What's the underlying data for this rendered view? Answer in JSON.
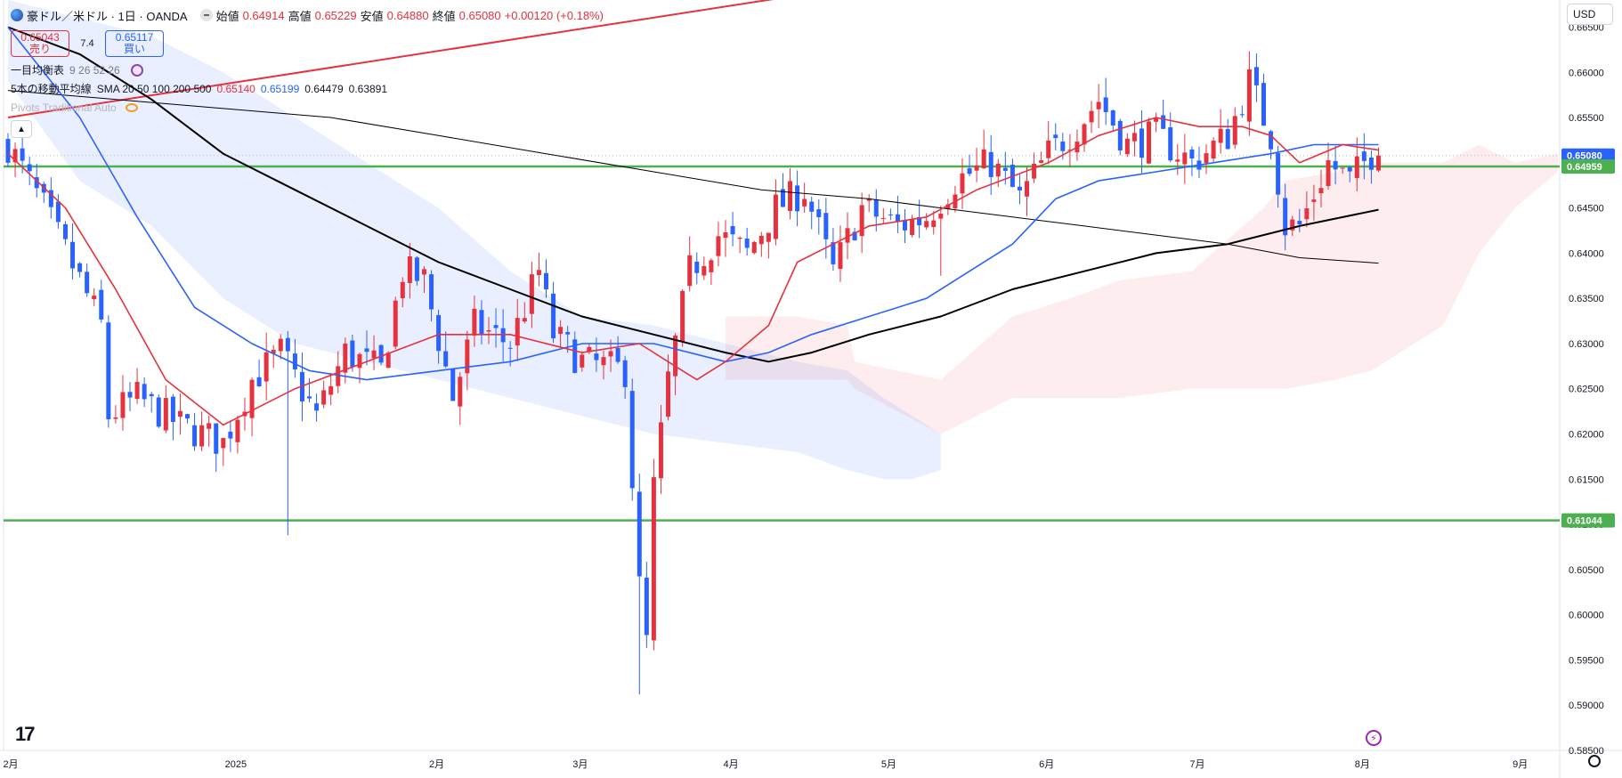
{
  "header": {
    "symbol_title": "豪ドル／米ドル · 1日 · OANDA",
    "ohlc": [
      {
        "label": "始値",
        "value": "0.64914"
      },
      {
        "label": "高値",
        "value": "0.65229"
      },
      {
        "label": "安値",
        "value": "0.64880"
      },
      {
        "label": "終値",
        "value": "0.65080"
      }
    ],
    "change": "+0.00120 (+0.18%)",
    "sell_price": "0.65043",
    "sell_label": "売り",
    "spread": "7.4",
    "buy_price": "0.65117",
    "buy_label": "買い",
    "currency": "USD"
  },
  "indicators": [
    {
      "name": "一目均衡表",
      "params": "9 26 52 26",
      "values": []
    },
    {
      "name": "5本の移動平均線",
      "params": "SMA 20 50 100 200 500",
      "values": [
        "0.65140",
        "0.65199",
        "0.64479",
        "0.63891"
      ]
    },
    {
      "name": "Pivots Traditional Auto",
      "params": "",
      "values": []
    }
  ],
  "colors": {
    "up": "#e5323e",
    "down": "#2962ff",
    "sma20": "#e5323e",
    "sma50": "#2962ff",
    "sma100": "#000000",
    "sma200": "#000000",
    "hline": "#4caf50"
  },
  "chart_data": {
    "type": "candlestick",
    "title": "豪ドル／米ドル · 1日 · OANDA",
    "ylim": [
      0.585,
      0.668
    ],
    "y_ticks": [
      "0.66500",
      "0.66000",
      "0.65500",
      "0.65000",
      "0.64500",
      "0.64000",
      "0.63500",
      "0.63000",
      "0.62500",
      "0.62000",
      "0.61500",
      "0.61000",
      "0.60500",
      "0.60000",
      "0.59500",
      "0.59000",
      "0.58500"
    ],
    "x_ticks": [
      "2月",
      "2025",
      "2月",
      "3月",
      "4月",
      "5月",
      "6月",
      "7月",
      "8月",
      "9月"
    ],
    "x_tick_index": [
      -91,
      -59,
      -31,
      -11,
      10,
      32,
      54,
      75,
      98,
      120
    ],
    "horizontal_lines": [
      {
        "label": "0.64959",
        "value": 0.64959
      },
      {
        "label": "0.61044",
        "value": 0.61044
      }
    ],
    "last_price": {
      "label": "0.65080",
      "value": 0.6508
    },
    "waypoints": [
      [
        0,
        0.652
      ],
      [
        5,
        0.645
      ],
      [
        10,
        0.637
      ],
      [
        13,
        0.632
      ],
      [
        14,
        0.622
      ],
      [
        18,
        0.624
      ],
      [
        24,
        0.621
      ],
      [
        30,
        0.619
      ],
      [
        34,
        0.626
      ],
      [
        38,
        0.629
      ],
      [
        43,
        0.622
      ],
      [
        47,
        0.629
      ],
      [
        52,
        0.627
      ],
      [
        55,
        0.638
      ],
      [
        58,
        0.637
      ],
      [
        62,
        0.624
      ],
      [
        65,
        0.632
      ],
      [
        70,
        0.63
      ],
      [
        74,
        0.638
      ],
      [
        76,
        0.631
      ],
      [
        80,
        0.628
      ],
      [
        86,
        0.627
      ],
      [
        88,
        0.603
      ],
      [
        89,
        0.597
      ],
      [
        90,
        0.614
      ],
      [
        92,
        0.626
      ],
      [
        95,
        0.638
      ],
      [
        99,
        0.642
      ],
      [
        103,
        0.64
      ],
      [
        107,
        0.645
      ],
      [
        111,
        0.647
      ],
      [
        115,
        0.638
      ],
      [
        119,
        0.645
      ],
      [
        124,
        0.643
      ],
      [
        128,
        0.644
      ],
      [
        132,
        0.648
      ],
      [
        137,
        0.65
      ],
      [
        141,
        0.646
      ],
      [
        145,
        0.651
      ],
      [
        149,
        0.654
      ],
      [
        152,
        0.657
      ],
      [
        156,
        0.652
      ],
      [
        160,
        0.653
      ],
      [
        165,
        0.65
      ],
      [
        170,
        0.653
      ],
      [
        173,
        0.659
      ],
      [
        176,
        0.653
      ],
      [
        178,
        0.643
      ],
      [
        180,
        0.643
      ],
      [
        184,
        0.65
      ],
      [
        187,
        0.648
      ],
      [
        190,
        0.651
      ],
      [
        191,
        0.6508
      ]
    ],
    "sma20_path": [
      [
        0,
        0.651
      ],
      [
        8,
        0.645
      ],
      [
        15,
        0.636
      ],
      [
        22,
        0.626
      ],
      [
        30,
        0.621
      ],
      [
        40,
        0.625
      ],
      [
        50,
        0.628
      ],
      [
        60,
        0.631
      ],
      [
        70,
        0.631
      ],
      [
        80,
        0.629
      ],
      [
        88,
        0.63
      ],
      [
        92,
        0.628
      ],
      [
        96,
        0.626
      ],
      [
        100,
        0.628
      ],
      [
        106,
        0.632
      ],
      [
        110,
        0.639
      ],
      [
        115,
        0.641
      ],
      [
        120,
        0.643
      ],
      [
        128,
        0.644
      ],
      [
        135,
        0.647
      ],
      [
        145,
        0.65
      ],
      [
        152,
        0.653
      ],
      [
        160,
        0.655
      ],
      [
        166,
        0.654
      ],
      [
        172,
        0.654
      ],
      [
        176,
        0.653
      ],
      [
        180,
        0.65
      ],
      [
        186,
        0.652
      ],
      [
        191,
        0.6514
      ]
    ],
    "sma50_path": [
      [
        0,
        0.665
      ],
      [
        10,
        0.655
      ],
      [
        18,
        0.644
      ],
      [
        26,
        0.634
      ],
      [
        34,
        0.63
      ],
      [
        42,
        0.627
      ],
      [
        50,
        0.626
      ],
      [
        60,
        0.627
      ],
      [
        70,
        0.628
      ],
      [
        80,
        0.63
      ],
      [
        90,
        0.63
      ],
      [
        100,
        0.628
      ],
      [
        106,
        0.629
      ],
      [
        112,
        0.631
      ],
      [
        120,
        0.633
      ],
      [
        128,
        0.635
      ],
      [
        134,
        0.638
      ],
      [
        140,
        0.641
      ],
      [
        146,
        0.646
      ],
      [
        152,
        0.648
      ],
      [
        160,
        0.649
      ],
      [
        168,
        0.65
      ],
      [
        176,
        0.651
      ],
      [
        182,
        0.652
      ],
      [
        191,
        0.652
      ]
    ],
    "sma100_path": [
      [
        0,
        0.665
      ],
      [
        10,
        0.662
      ],
      [
        20,
        0.657
      ],
      [
        30,
        0.651
      ],
      [
        40,
        0.647
      ],
      [
        50,
        0.643
      ],
      [
        60,
        0.639
      ],
      [
        70,
        0.636
      ],
      [
        80,
        0.633
      ],
      [
        90,
        0.631
      ],
      [
        100,
        0.629
      ],
      [
        106,
        0.628
      ],
      [
        112,
        0.629
      ],
      [
        120,
        0.631
      ],
      [
        130,
        0.633
      ],
      [
        140,
        0.636
      ],
      [
        150,
        0.638
      ],
      [
        160,
        0.64
      ],
      [
        170,
        0.641
      ],
      [
        180,
        0.643
      ],
      [
        191,
        0.6448
      ]
    ],
    "sma200_path": [
      [
        0,
        0.658
      ],
      [
        15,
        0.657
      ],
      [
        30,
        0.656
      ],
      [
        45,
        0.655
      ],
      [
        60,
        0.653
      ],
      [
        75,
        0.651
      ],
      [
        90,
        0.649
      ],
      [
        105,
        0.647
      ],
      [
        120,
        0.646
      ],
      [
        130,
        0.645
      ],
      [
        140,
        0.644
      ],
      [
        150,
        0.643
      ],
      [
        160,
        0.642
      ],
      [
        170,
        0.641
      ],
      [
        180,
        0.6395
      ],
      [
        191,
        0.6389
      ]
    ],
    "trend_line": [
      [
        0,
        0.655
      ],
      [
        114,
        0.669
      ]
    ],
    "cloud_blue": [
      [
        0,
        0.668,
        0.659
      ],
      [
        10,
        0.666,
        0.648
      ],
      [
        20,
        0.664,
        0.643
      ],
      [
        30,
        0.66,
        0.635
      ],
      [
        40,
        0.655,
        0.63
      ],
      [
        50,
        0.65,
        0.628
      ],
      [
        60,
        0.645,
        0.626
      ],
      [
        70,
        0.638,
        0.624
      ],
      [
        80,
        0.633,
        0.622
      ],
      [
        90,
        0.632,
        0.62
      ],
      [
        100,
        0.63,
        0.619
      ],
      [
        110,
        0.628,
        0.618
      ],
      [
        117,
        0.627,
        0.616
      ],
      [
        122,
        0.624,
        0.615
      ],
      [
        126,
        0.622,
        0.615
      ],
      [
        130,
        0.62,
        0.616
      ]
    ],
    "cloud_pink": [
      [
        100,
        0.633,
        0.626
      ],
      [
        110,
        0.633,
        0.626
      ],
      [
        117,
        0.632,
        0.626
      ],
      [
        118,
        0.628,
        0.625
      ],
      [
        130,
        0.626,
        0.62
      ],
      [
        140,
        0.633,
        0.624
      ],
      [
        148,
        0.635,
        0.624
      ],
      [
        155,
        0.637,
        0.624
      ],
      [
        165,
        0.638,
        0.625
      ],
      [
        175,
        0.645,
        0.625
      ],
      [
        178,
        0.648,
        0.625
      ],
      [
        185,
        0.649,
        0.626
      ],
      [
        190,
        0.65,
        0.627
      ],
      [
        200,
        0.65,
        0.632
      ],
      [
        205,
        0.652,
        0.64
      ],
      [
        210,
        0.65,
        0.645
      ],
      [
        216,
        0.651,
        0.649
      ]
    ]
  }
}
